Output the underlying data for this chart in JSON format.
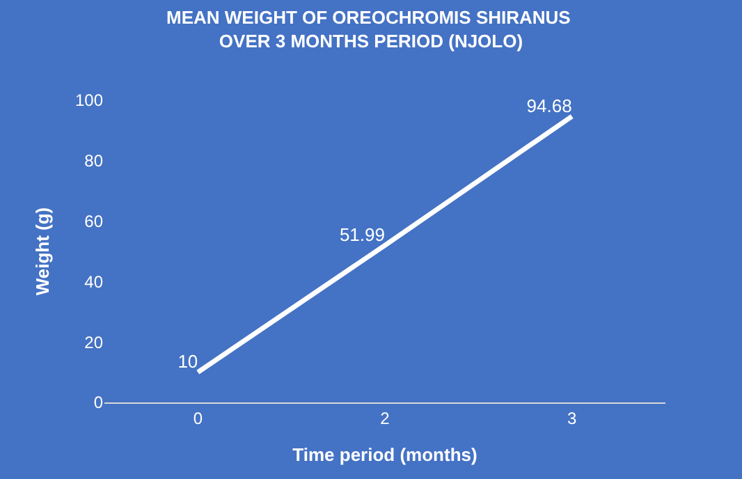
{
  "chart_data": {
    "type": "line",
    "title": "MEAN WEIGHT OF OREOCHROMIS SHIRANUS  OVER 3 MONTHS PERIOD (NJOLO)",
    "xlabel": "Time period (months)",
    "ylabel": "Weight (g)",
    "categories": [
      "0",
      "2",
      "3"
    ],
    "series": [
      {
        "color": "#ffffff",
        "values": [
          10,
          51.99,
          94.68
        ]
      }
    ],
    "ylim": [
      0,
      100
    ],
    "yticks": [
      0,
      20,
      40,
      60,
      80,
      100
    ],
    "data_labels": true,
    "grid": false,
    "legend": false,
    "marker": "none",
    "line_style": "solid"
  }
}
